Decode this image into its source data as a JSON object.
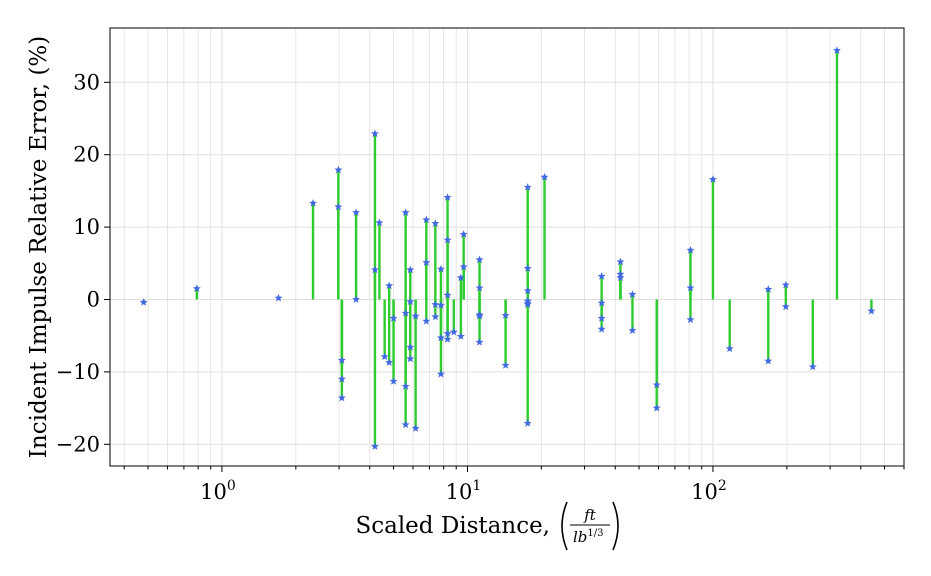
{
  "chart_data": {
    "type": "scatter",
    "title": "",
    "xlabel": "Scaled Distance,",
    "xlabel_unit": {
      "numerator": "ft",
      "denominator": "lb",
      "denominator_exp": "1/3"
    },
    "ylabel": "Incident Impulse Relative Error, (%)",
    "x_scale": "log",
    "xlim": [
      0.35,
      600
    ],
    "ylim": [
      -23,
      37.5
    ],
    "x_ticks": [
      {
        "value": 1,
        "base": "10",
        "exp": "0"
      },
      {
        "value": 10,
        "base": "10",
        "exp": "1"
      },
      {
        "value": 100,
        "base": "10",
        "exp": "2"
      }
    ],
    "y_ticks": [
      {
        "value": -20,
        "label": "−20"
      },
      {
        "value": -10,
        "label": "−10"
      },
      {
        "value": 0,
        "label": "0"
      },
      {
        "value": 10,
        "label": "10"
      },
      {
        "value": 20,
        "label": "20"
      },
      {
        "value": 30,
        "label": "30"
      }
    ],
    "grid": true,
    "marker": "star",
    "colors": {
      "stem": "#2ecc2e",
      "marker": "#4169e1",
      "grid": "#e0e0e0"
    },
    "series": [
      {
        "points": [
          [
            0.48,
            -0.4
          ],
          [
            0.79,
            1.5
          ],
          [
            1.7,
            0.2
          ],
          [
            2.35,
            13.3
          ],
          [
            2.98,
            17.9
          ],
          [
            2.98,
            12.8
          ],
          [
            3.08,
            -8.4
          ],
          [
            3.08,
            -11.0
          ],
          [
            3.08,
            -13.6
          ],
          [
            3.52,
            12.0
          ],
          [
            3.52,
            0.0
          ],
          [
            4.2,
            22.9
          ],
          [
            4.2,
            4.1
          ],
          [
            4.2,
            -20.3
          ],
          [
            4.38,
            10.6
          ],
          [
            4.6,
            -7.9
          ],
          [
            4.8,
            1.9
          ],
          [
            4.8,
            -8.7
          ],
          [
            5.0,
            -2.6
          ],
          [
            5.0,
            -11.3
          ],
          [
            5.6,
            12.0
          ],
          [
            5.6,
            -1.9
          ],
          [
            5.6,
            -12.0
          ],
          [
            5.6,
            -17.3
          ],
          [
            5.85,
            4.1
          ],
          [
            5.85,
            -0.3
          ],
          [
            5.85,
            -8.2
          ],
          [
            5.85,
            -6.6
          ],
          [
            6.15,
            -2.3
          ],
          [
            6.15,
            -17.8
          ],
          [
            6.8,
            11.0
          ],
          [
            6.8,
            5.1
          ],
          [
            6.8,
            -3.0
          ],
          [
            7.4,
            10.5
          ],
          [
            7.4,
            -0.7
          ],
          [
            7.4,
            -2.4
          ],
          [
            7.8,
            4.2
          ],
          [
            7.8,
            -0.8
          ],
          [
            7.8,
            -5.3
          ],
          [
            7.8,
            -10.3
          ],
          [
            8.3,
            14.1
          ],
          [
            8.3,
            8.2
          ],
          [
            8.3,
            0.6
          ],
          [
            8.3,
            -4.7
          ],
          [
            8.3,
            -5.5
          ],
          [
            8.8,
            -4.5
          ],
          [
            9.4,
            3.0
          ],
          [
            9.4,
            -5.1
          ],
          [
            9.65,
            9.0
          ],
          [
            9.65,
            4.5
          ],
          [
            11.2,
            5.5
          ],
          [
            11.2,
            1.6
          ],
          [
            11.2,
            -2.1
          ],
          [
            11.2,
            -2.3
          ],
          [
            11.2,
            -5.9
          ],
          [
            14.3,
            -2.2
          ],
          [
            14.3,
            -9.1
          ],
          [
            17.6,
            15.5
          ],
          [
            17.6,
            4.3
          ],
          [
            17.6,
            1.2
          ],
          [
            17.6,
            -0.2
          ],
          [
            17.6,
            -0.5
          ],
          [
            17.6,
            -0.7
          ],
          [
            17.6,
            -17.1
          ],
          [
            20.6,
            16.9
          ],
          [
            35.2,
            3.2
          ],
          [
            35.2,
            -0.5
          ],
          [
            35.2,
            -2.6
          ],
          [
            35.2,
            -4.1
          ],
          [
            42.0,
            5.2
          ],
          [
            42.0,
            3.5
          ],
          [
            42.0,
            3.0
          ],
          [
            47.0,
            0.7
          ],
          [
            47.0,
            -4.3
          ],
          [
            59.0,
            -11.8
          ],
          [
            59.0,
            -15.0
          ],
          [
            81.0,
            6.8
          ],
          [
            81.0,
            1.6
          ],
          [
            81.0,
            -2.8
          ],
          [
            100.0,
            16.6
          ],
          [
            117.0,
            -6.8
          ],
          [
            168.0,
            1.4
          ],
          [
            168.0,
            -8.5
          ],
          [
            198.0,
            2.0
          ],
          [
            198.0,
            -1.0
          ],
          [
            255.0,
            -9.3
          ],
          [
            320.0,
            34.4
          ],
          [
            442.0,
            -1.6
          ]
        ]
      }
    ]
  }
}
